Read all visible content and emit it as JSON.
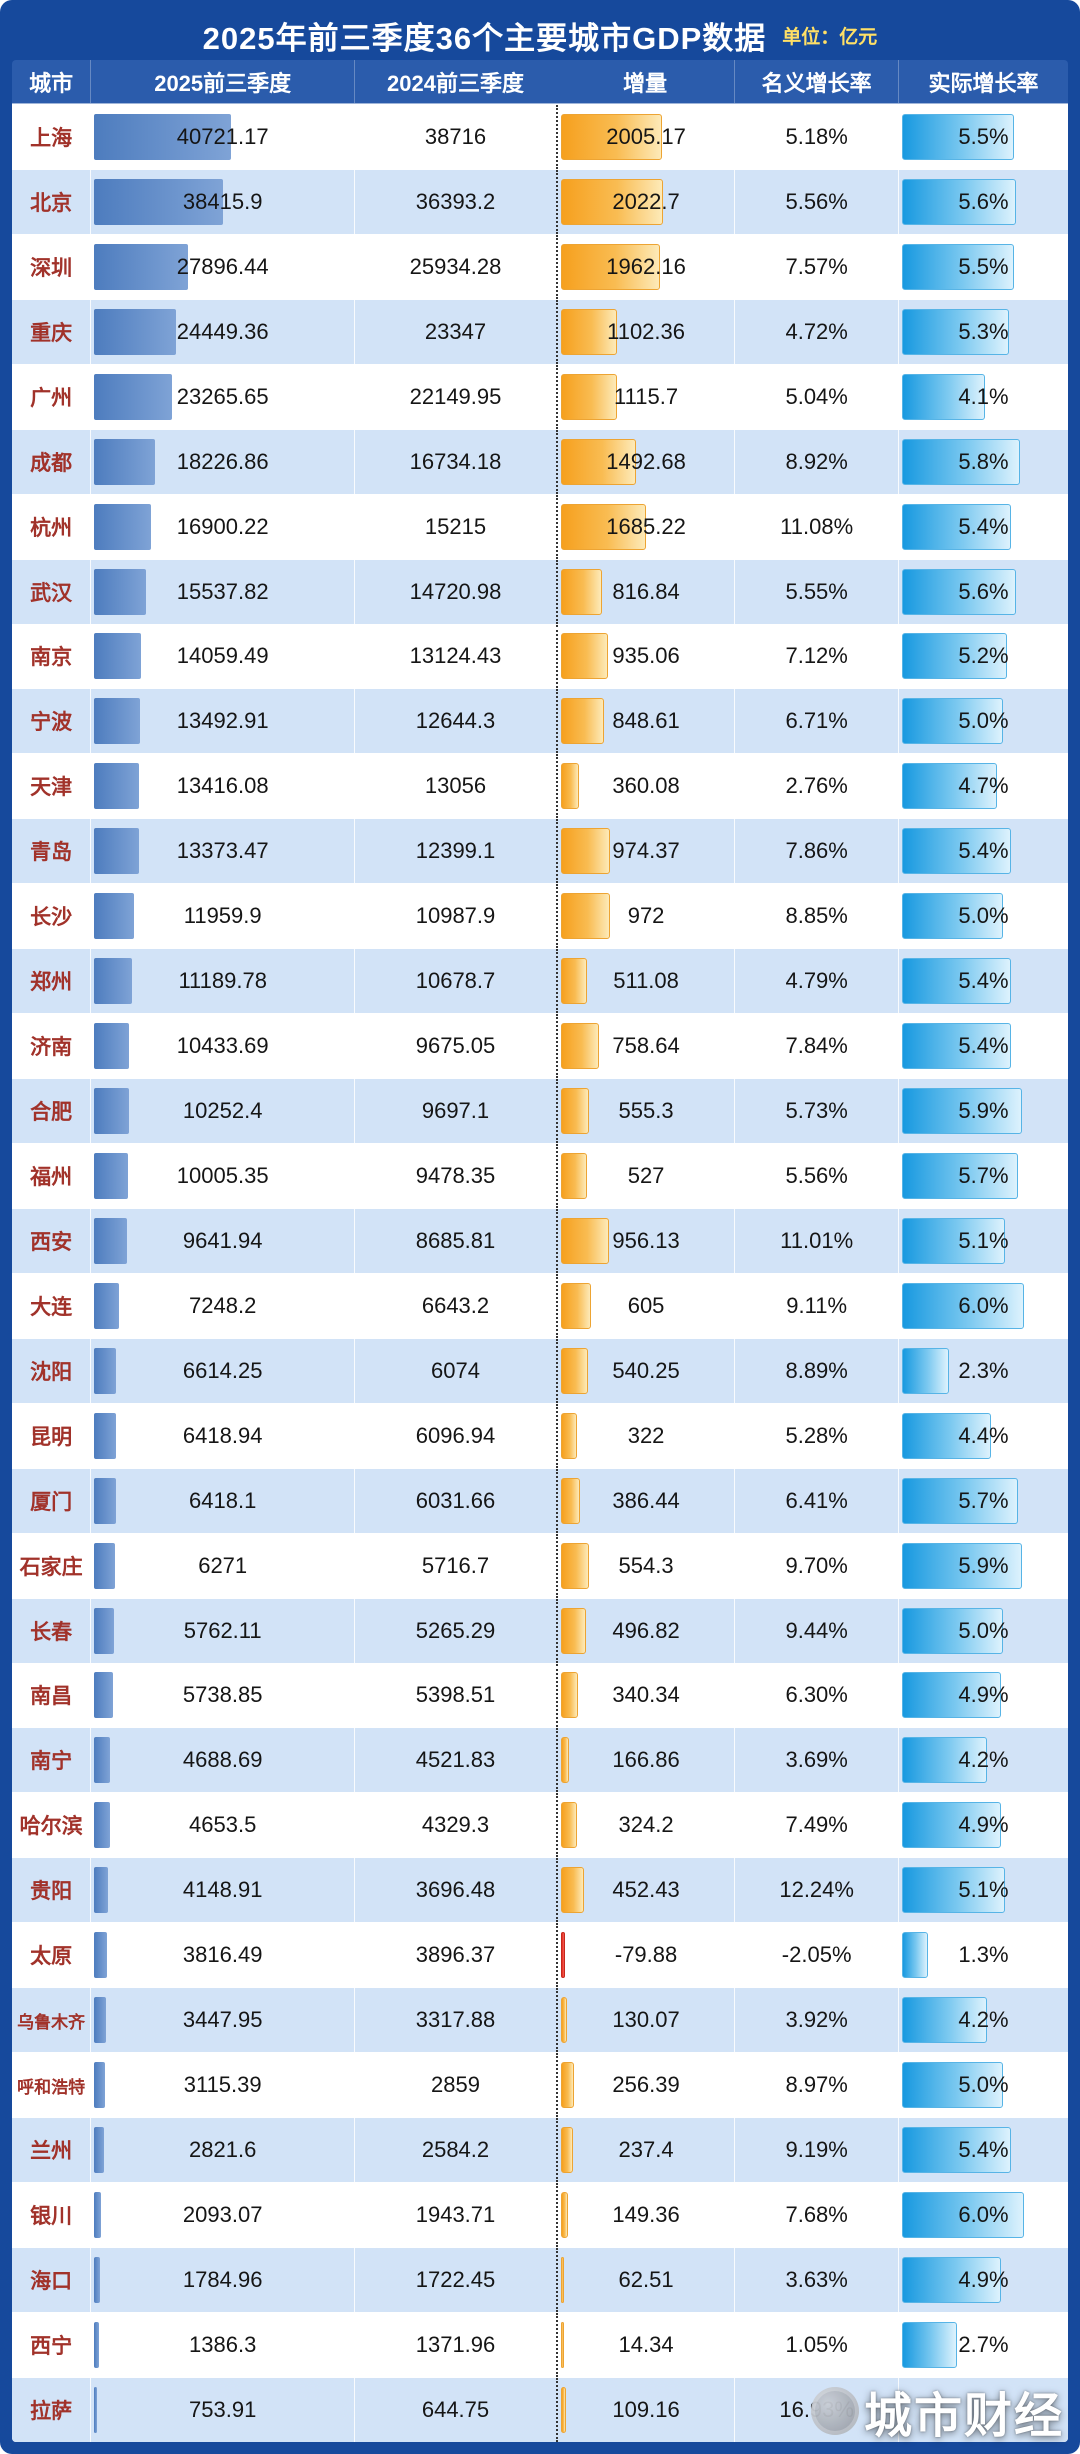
{
  "watermark": "城市财经",
  "colors": {
    "frame_blue": "#16499c",
    "header_blue": "#2b5cac",
    "row_alt_blue": "#d2e3f7",
    "city_text_red": "#a1322a",
    "gdp_bar_blue": "#4d7cbe",
    "delta_bar_orange": "#f6a01e",
    "delta_bar_negative_red": "#e42a1c",
    "real_bar_blue": "#1899e0",
    "unit_label_yellow": "#ffe066"
  },
  "chart_data": {
    "type": "table",
    "title": "2025年前三季度36个主要城市GDP数据",
    "unit_label": "单位：亿元",
    "columns": [
      "城市",
      "2025前三季度",
      "2024前三季度",
      "增量",
      "名义增长率",
      "实际增长率"
    ],
    "rows": [
      {
        "city": "上海",
        "gdp_2025": "40721.17",
        "gdp_2024": "38716",
        "delta": "2005.17",
        "nominal_growth": "5.18%",
        "real_growth": "5.5%"
      },
      {
        "city": "北京",
        "gdp_2025": "38415.9",
        "gdp_2024": "36393.2",
        "delta": "2022.7",
        "nominal_growth": "5.56%",
        "real_growth": "5.6%"
      },
      {
        "city": "深圳",
        "gdp_2025": "27896.44",
        "gdp_2024": "25934.28",
        "delta": "1962.16",
        "nominal_growth": "7.57%",
        "real_growth": "5.5%"
      },
      {
        "city": "重庆",
        "gdp_2025": "24449.36",
        "gdp_2024": "23347",
        "delta": "1102.36",
        "nominal_growth": "4.72%",
        "real_growth": "5.3%"
      },
      {
        "city": "广州",
        "gdp_2025": "23265.65",
        "gdp_2024": "22149.95",
        "delta": "1115.7",
        "nominal_growth": "5.04%",
        "real_growth": "4.1%"
      },
      {
        "city": "成都",
        "gdp_2025": "18226.86",
        "gdp_2024": "16734.18",
        "delta": "1492.68",
        "nominal_growth": "8.92%",
        "real_growth": "5.8%"
      },
      {
        "city": "杭州",
        "gdp_2025": "16900.22",
        "gdp_2024": "15215",
        "delta": "1685.22",
        "nominal_growth": "11.08%",
        "real_growth": "5.4%"
      },
      {
        "city": "武汉",
        "gdp_2025": "15537.82",
        "gdp_2024": "14720.98",
        "delta": "816.84",
        "nominal_growth": "5.55%",
        "real_growth": "5.6%"
      },
      {
        "city": "南京",
        "gdp_2025": "14059.49",
        "gdp_2024": "13124.43",
        "delta": "935.06",
        "nominal_growth": "7.12%",
        "real_growth": "5.2%"
      },
      {
        "city": "宁波",
        "gdp_2025": "13492.91",
        "gdp_2024": "12644.3",
        "delta": "848.61",
        "nominal_growth": "6.71%",
        "real_growth": "5.0%"
      },
      {
        "city": "天津",
        "gdp_2025": "13416.08",
        "gdp_2024": "13056",
        "delta": "360.08",
        "nominal_growth": "2.76%",
        "real_growth": "4.7%"
      },
      {
        "city": "青岛",
        "gdp_2025": "13373.47",
        "gdp_2024": "12399.1",
        "delta": "974.37",
        "nominal_growth": "7.86%",
        "real_growth": "5.4%"
      },
      {
        "city": "长沙",
        "gdp_2025": "11959.9",
        "gdp_2024": "10987.9",
        "delta": "972",
        "nominal_growth": "8.85%",
        "real_growth": "5.0%"
      },
      {
        "city": "郑州",
        "gdp_2025": "11189.78",
        "gdp_2024": "10678.7",
        "delta": "511.08",
        "nominal_growth": "4.79%",
        "real_growth": "5.4%"
      },
      {
        "city": "济南",
        "gdp_2025": "10433.69",
        "gdp_2024": "9675.05",
        "delta": "758.64",
        "nominal_growth": "7.84%",
        "real_growth": "5.4%"
      },
      {
        "city": "合肥",
        "gdp_2025": "10252.4",
        "gdp_2024": "9697.1",
        "delta": "555.3",
        "nominal_growth": "5.73%",
        "real_growth": "5.9%"
      },
      {
        "city": "福州",
        "gdp_2025": "10005.35",
        "gdp_2024": "9478.35",
        "delta": "527",
        "nominal_growth": "5.56%",
        "real_growth": "5.7%"
      },
      {
        "city": "西安",
        "gdp_2025": "9641.94",
        "gdp_2024": "8685.81",
        "delta": "956.13",
        "nominal_growth": "11.01%",
        "real_growth": "5.1%"
      },
      {
        "city": "大连",
        "gdp_2025": "7248.2",
        "gdp_2024": "6643.2",
        "delta": "605",
        "nominal_growth": "9.11%",
        "real_growth": "6.0%"
      },
      {
        "city": "沈阳",
        "gdp_2025": "6614.25",
        "gdp_2024": "6074",
        "delta": "540.25",
        "nominal_growth": "8.89%",
        "real_growth": "2.3%"
      },
      {
        "city": "昆明",
        "gdp_2025": "6418.94",
        "gdp_2024": "6096.94",
        "delta": "322",
        "nominal_growth": "5.28%",
        "real_growth": "4.4%"
      },
      {
        "city": "厦门",
        "gdp_2025": "6418.1",
        "gdp_2024": "6031.66",
        "delta": "386.44",
        "nominal_growth": "6.41%",
        "real_growth": "5.7%"
      },
      {
        "city": "石家庄",
        "gdp_2025": "6271",
        "gdp_2024": "5716.7",
        "delta": "554.3",
        "nominal_growth": "9.70%",
        "real_growth": "5.9%"
      },
      {
        "city": "长春",
        "gdp_2025": "5762.11",
        "gdp_2024": "5265.29",
        "delta": "496.82",
        "nominal_growth": "9.44%",
        "real_growth": "5.0%"
      },
      {
        "city": "南昌",
        "gdp_2025": "5738.85",
        "gdp_2024": "5398.51",
        "delta": "340.34",
        "nominal_growth": "6.30%",
        "real_growth": "4.9%"
      },
      {
        "city": "南宁",
        "gdp_2025": "4688.69",
        "gdp_2024": "4521.83",
        "delta": "166.86",
        "nominal_growth": "3.69%",
        "real_growth": "4.2%"
      },
      {
        "city": "哈尔滨",
        "gdp_2025": "4653.5",
        "gdp_2024": "4329.3",
        "delta": "324.2",
        "nominal_growth": "7.49%",
        "real_growth": "4.9%"
      },
      {
        "city": "贵阳",
        "gdp_2025": "4148.91",
        "gdp_2024": "3696.48",
        "delta": "452.43",
        "nominal_growth": "12.24%",
        "real_growth": "5.1%"
      },
      {
        "city": "太原",
        "gdp_2025": "3816.49",
        "gdp_2024": "3896.37",
        "delta": "-79.88",
        "nominal_growth": "-2.05%",
        "real_growth": "1.3%"
      },
      {
        "city": "乌鲁木齐",
        "gdp_2025": "3447.95",
        "gdp_2024": "3317.88",
        "delta": "130.07",
        "nominal_growth": "3.92%",
        "real_growth": "4.2%"
      },
      {
        "city": "呼和浩特",
        "gdp_2025": "3115.39",
        "gdp_2024": "2859",
        "delta": "256.39",
        "nominal_growth": "8.97%",
        "real_growth": "5.0%"
      },
      {
        "city": "兰州",
        "gdp_2025": "2821.6",
        "gdp_2024": "2584.2",
        "delta": "237.4",
        "nominal_growth": "9.19%",
        "real_growth": "5.4%"
      },
      {
        "city": "银川",
        "gdp_2025": "2093.07",
        "gdp_2024": "1943.71",
        "delta": "149.36",
        "nominal_growth": "7.68%",
        "real_growth": "6.0%"
      },
      {
        "city": "海口",
        "gdp_2025": "1784.96",
        "gdp_2024": "1722.45",
        "delta": "62.51",
        "nominal_growth": "3.63%",
        "real_growth": "4.9%"
      },
      {
        "city": "西宁",
        "gdp_2025": "1386.3",
        "gdp_2024": "1371.96",
        "delta": "14.34",
        "nominal_growth": "1.05%",
        "real_growth": "2.7%"
      },
      {
        "city": "拉萨",
        "gdp_2025": "753.91",
        "gdp_2024": "644.75",
        "delta": "109.16",
        "nominal_growth": "16.93%",
        "real_growth": ""
      }
    ]
  }
}
